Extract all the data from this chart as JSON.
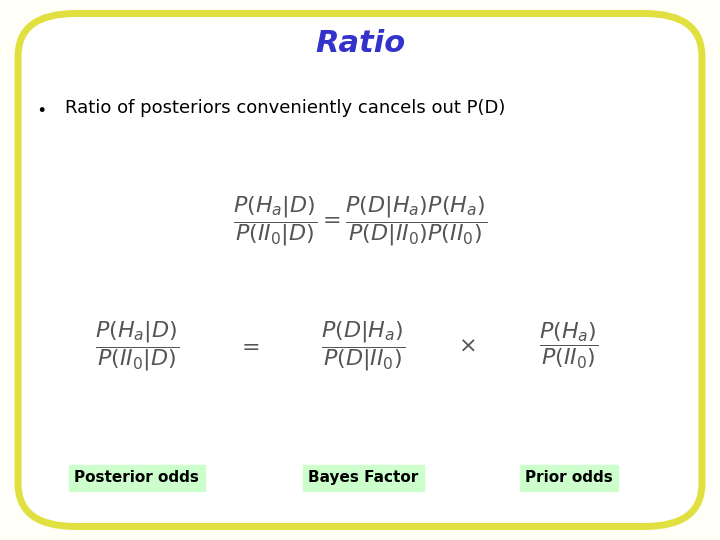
{
  "title": "Ratio",
  "title_color": "#3333cc",
  "title_fontsize": 22,
  "bullet_text": "Ratio of posteriors conveniently cancels out P(D)",
  "bullet_fontsize": 13,
  "label1": "Posterior odds",
  "label2": "Bayes Factor",
  "label3": "Prior odds",
  "label_bg": "#ccffcc",
  "label_fontsize": 11,
  "bg_color": "#ffffff",
  "border_color": "#e0e040",
  "outer_bg": "#fffff8"
}
